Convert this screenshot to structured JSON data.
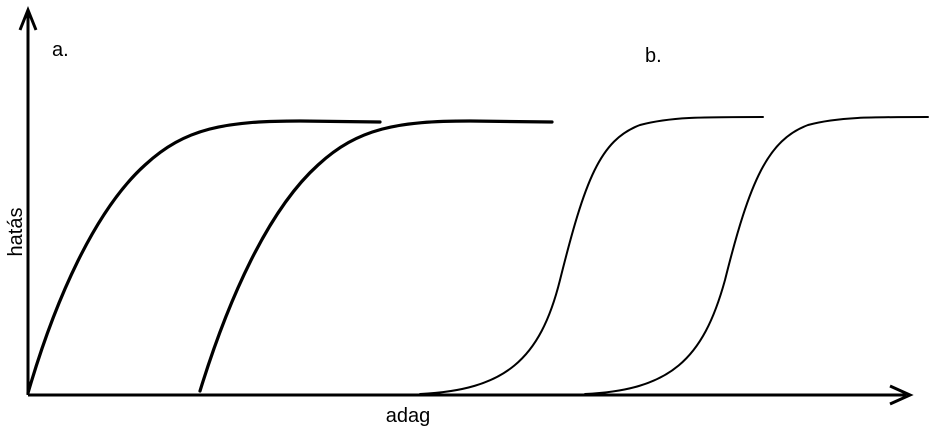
{
  "panel_labels": {
    "a": "a.",
    "b": "b."
  },
  "axes": {
    "y": "hatás",
    "x": "adag"
  }
}
